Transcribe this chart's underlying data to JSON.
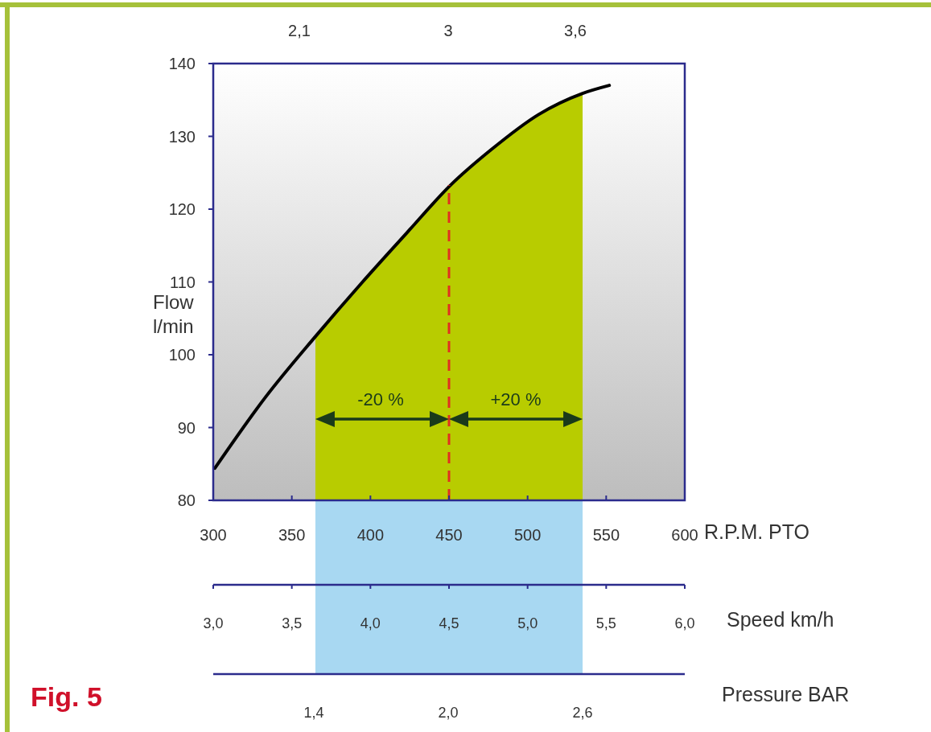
{
  "chart_data": {
    "type": "line",
    "title": "Fig. 5",
    "xlabel": "R.P.M. PTO",
    "ylabel": "Flow\nl/min",
    "x2label": "Speed   km/h",
    "xlim": [
      300,
      600
    ],
    "xticks": [
      300,
      350,
      400,
      450,
      500,
      550,
      600
    ],
    "ylim": [
      80,
      140
    ],
    "yticks": [
      80,
      90,
      100,
      110,
      120,
      130,
      140
    ],
    "x2lim": [
      3,
      6
    ],
    "x2ticks": [
      {
        "value": 3,
        "label": "3,0"
      },
      {
        "value": 3.5,
        "label": "3,5"
      },
      {
        "value": 4,
        "label": "4,0"
      },
      {
        "value": 4.5,
        "label": "4,5"
      },
      {
        "value": 5,
        "label": "5,0"
      },
      {
        "value": 5.5,
        "label": "5,5"
      },
      {
        "value": 6,
        "label": "6,0"
      }
    ],
    "series": [
      {
        "type": "area",
        "color": "#b8cc00",
        "x": [
          365,
          395,
          423,
          451,
          477,
          507,
          535
        ],
        "values": [
          102.5,
          110,
          116.7,
          123.3,
          128.2,
          133,
          135.9
        ]
      },
      {
        "type": "line",
        "color": "#000000",
        "x": [
          301,
          333,
          365,
          395,
          423,
          451,
          477,
          507,
          535,
          552
        ],
        "values": [
          84.4,
          94.1,
          102.5,
          110,
          116.7,
          123.3,
          128.2,
          133,
          135.9,
          137
        ]
      }
    ],
    "ref_lines": [
      {
        "axis": "x",
        "value": 450,
        "color": "#e03020",
        "line_style": "dashed"
      }
    ],
    "annotations": [
      "-20 %",
      "+20 %",
      "2,1",
      "3",
      "3,6",
      "Pressure  BAR",
      "1,4",
      "2,0",
      "2,6"
    ]
  }
}
